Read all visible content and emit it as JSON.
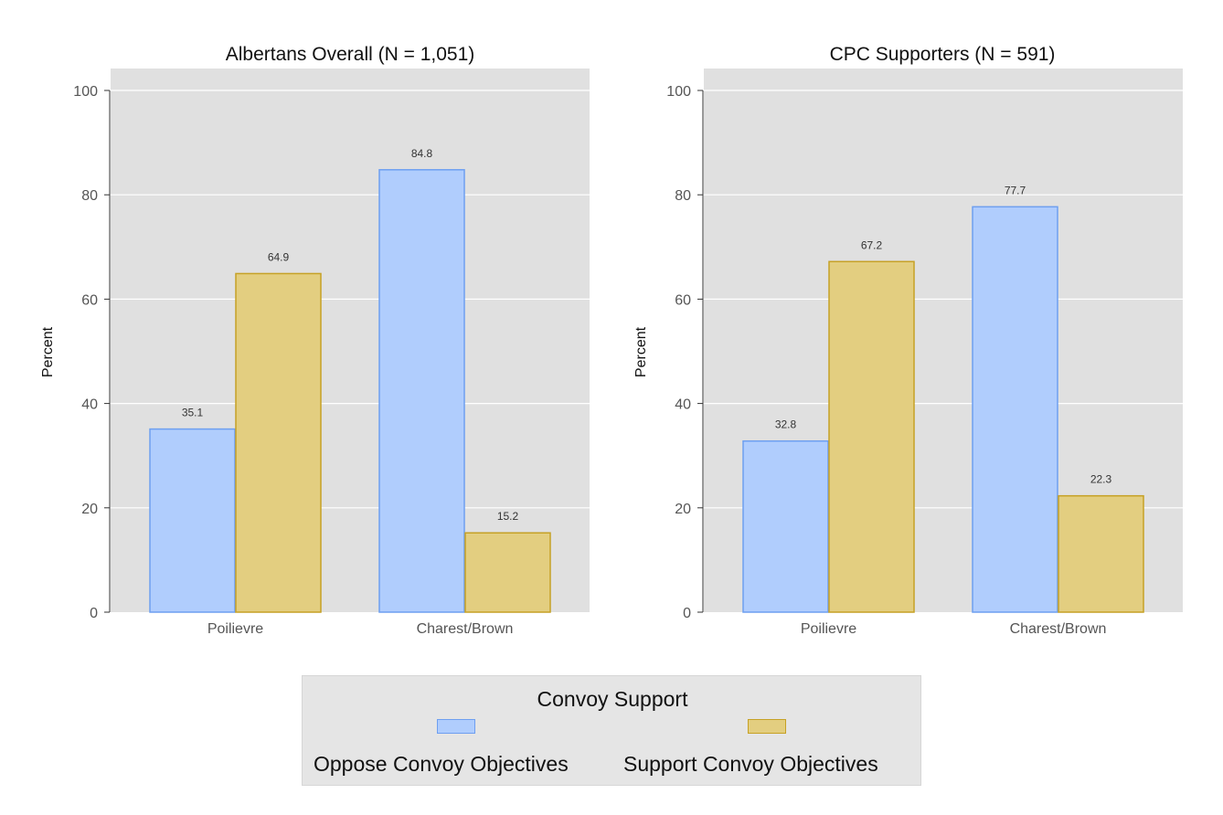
{
  "colors": {
    "oppose_fill": "#b0cdfd",
    "oppose_stroke": "#6e9ff0",
    "support_fill": "#e3ce80",
    "support_stroke": "#c6a125",
    "panel_bg": "#e0e0e0",
    "grid": "#ffffff"
  },
  "legend": {
    "title": "Convoy Support",
    "items": [
      {
        "label": "Oppose Convoy Objectives",
        "color": "#b0cdfd",
        "stroke": "#6e9ff0"
      },
      {
        "label": "Support Convoy Objectives",
        "color": "#e3ce80",
        "stroke": "#c6a125"
      }
    ]
  },
  "chart_data": [
    {
      "type": "bar",
      "title": "Albertans Overall (N = 1,051)",
      "xlabel": "",
      "ylabel": "Percent",
      "ylim": [
        0,
        100
      ],
      "yticks": [
        0,
        20,
        40,
        60,
        80,
        100
      ],
      "grid": true,
      "categories": [
        "Poilievre",
        "Charest/Brown"
      ],
      "series": [
        {
          "name": "Oppose Convoy Objectives",
          "values": [
            35.1,
            84.8
          ],
          "labels": [
            "35.1",
            "84.8"
          ]
        },
        {
          "name": "Support Convoy Objectives",
          "values": [
            64.9,
            15.2
          ],
          "labels": [
            "64.9",
            "15.2"
          ]
        }
      ]
    },
    {
      "type": "bar",
      "title": "CPC Supporters (N = 591)",
      "xlabel": "",
      "ylabel": "Percent",
      "ylim": [
        0,
        100
      ],
      "yticks": [
        0,
        20,
        40,
        60,
        80,
        100
      ],
      "grid": true,
      "categories": [
        "Poilievre",
        "Charest/Brown"
      ],
      "series": [
        {
          "name": "Oppose Convoy Objectives",
          "values": [
            32.8,
            77.7
          ],
          "labels": [
            "32.8",
            "77.7"
          ]
        },
        {
          "name": "Support Convoy Objectives",
          "values": [
            67.2,
            22.3
          ],
          "labels": [
            "67.2",
            "22.3"
          ]
        }
      ]
    }
  ]
}
